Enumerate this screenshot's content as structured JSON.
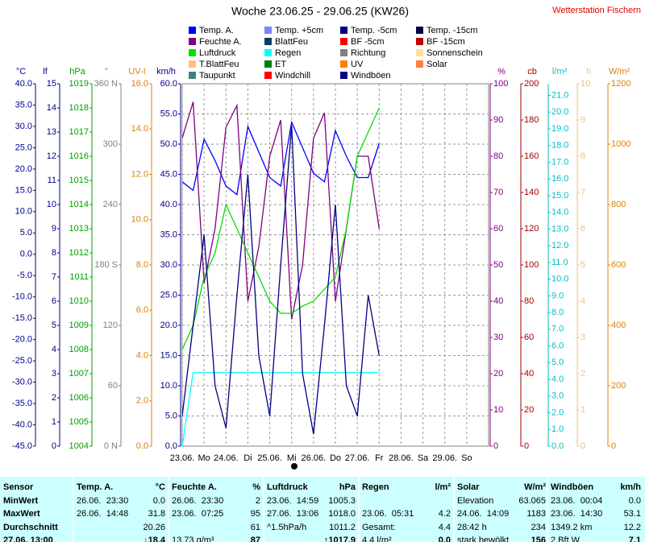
{
  "header": {
    "station": "Wetterstation Fischern"
  },
  "chart_data": {
    "type": "line",
    "title": "Woche 23.06.25 - 29.06.25 (KW26)",
    "xlim": [
      0,
      168
    ],
    "xticks": [
      {
        "value": 0,
        "label": "23.06."
      },
      {
        "value": 12,
        "label": "Mo"
      },
      {
        "value": 24,
        "label": "24.06."
      },
      {
        "value": 36,
        "label": "Di"
      },
      {
        "value": 48,
        "label": "25.06."
      },
      {
        "value": 60,
        "label": "Mi"
      },
      {
        "value": 72,
        "label": "26.06."
      },
      {
        "value": 84,
        "label": "Do"
      },
      {
        "value": 96,
        "label": "27.06."
      },
      {
        "value": 108,
        "label": "Fr"
      },
      {
        "value": 120,
        "label": "28.06."
      },
      {
        "value": 132,
        "label": "Sa"
      },
      {
        "value": 144,
        "label": "29.06."
      },
      {
        "value": 156,
        "label": "So"
      }
    ],
    "grid": true,
    "axes": [
      {
        "unit": "°C",
        "color": "#00008b",
        "side": "left",
        "lim": [
          -45,
          40
        ],
        "ticks": [
          {
            "value": -45,
            "label": "-45.0"
          },
          {
            "value": -40,
            "label": "-40.0"
          },
          {
            "value": -35,
            "label": "-35.0"
          },
          {
            "value": -30,
            "label": "-30.0"
          },
          {
            "value": -25,
            "label": "-25.0"
          },
          {
            "value": -20,
            "label": "-20.0"
          },
          {
            "value": -15,
            "label": "-15.0"
          },
          {
            "value": -10,
            "label": "-10.0"
          },
          {
            "value": -5,
            "label": "-5.0"
          },
          {
            "value": 0,
            "label": "0.0"
          },
          {
            "value": 5,
            "label": "5.0"
          },
          {
            "value": 10,
            "label": "10.0"
          },
          {
            "value": 15,
            "label": "15.0"
          },
          {
            "value": 20,
            "label": "20.0"
          },
          {
            "value": 25,
            "label": "25.0"
          },
          {
            "value": 30,
            "label": "30.0"
          },
          {
            "value": 35,
            "label": "35.0"
          },
          {
            "value": 40,
            "label": "40.0"
          }
        ]
      },
      {
        "unit": "lf",
        "color": "#00008b",
        "side": "left",
        "lim": [
          0,
          15
        ],
        "ticks": [
          0,
          1,
          2,
          3,
          4,
          5,
          6,
          7,
          8,
          9,
          10,
          11,
          12,
          13,
          14,
          15
        ]
      },
      {
        "unit": "hPa",
        "color": "#00a000",
        "side": "left",
        "lim": [
          1004,
          1019
        ],
        "ticks": [
          1004,
          1005,
          1006,
          1007,
          1008,
          1009,
          1010,
          1011,
          1012,
          1013,
          1014,
          1015,
          1016,
          1017,
          1018,
          1019
        ]
      },
      {
        "unit": "°",
        "color": "#808080",
        "side": "left",
        "lim": [
          0,
          360
        ],
        "ticks": [
          {
            "value": 0,
            "label": "0 N"
          },
          60,
          120,
          {
            "value": 180,
            "label": "180 S"
          },
          240,
          300,
          {
            "value": 360,
            "label": "360 N"
          }
        ]
      },
      {
        "unit": "UV-I",
        "color": "#e08000",
        "side": "left",
        "lim": [
          0,
          16
        ],
        "ticks": [
          {
            "value": 0,
            "label": "0.0"
          },
          {
            "value": 2,
            "label": "2.0"
          },
          {
            "value": 4,
            "label": "4.0"
          },
          {
            "value": 6,
            "label": "6.0"
          },
          {
            "value": 8,
            "label": "8.0"
          },
          {
            "value": 10,
            "label": "10.0"
          },
          {
            "value": 12,
            "label": "12.0"
          },
          {
            "value": 14,
            "label": "14.0"
          },
          {
            "value": 16,
            "label": "16.0"
          }
        ]
      },
      {
        "unit": "km/h",
        "color": "#00008b",
        "side": "left",
        "lim": [
          0,
          60
        ],
        "ticks": [
          {
            "value": 0,
            "label": "0.0"
          },
          {
            "value": 5,
            "label": "5.0"
          },
          {
            "value": 10,
            "label": "10.0"
          },
          {
            "value": 15,
            "label": "15.0"
          },
          {
            "value": 20,
            "label": "20.0"
          },
          {
            "value": 25,
            "label": "25.0"
          },
          {
            "value": 30,
            "label": "30.0"
          },
          {
            "value": 35,
            "label": "35.0"
          },
          {
            "value": 40,
            "label": "40.0"
          },
          {
            "value": 45,
            "label": "45.0"
          },
          {
            "value": 50,
            "label": "50.0"
          },
          {
            "value": 55,
            "label": "55.0"
          },
          {
            "value": 60,
            "label": "60.0"
          }
        ]
      },
      {
        "unit": "%",
        "color": "#800080",
        "side": "right",
        "lim": [
          0,
          100
        ],
        "ticks": [
          0,
          10,
          20,
          30,
          40,
          50,
          60,
          70,
          80,
          90,
          100
        ]
      },
      {
        "unit": "cb",
        "color": "#a00000",
        "side": "right",
        "lim": [
          0,
          200
        ],
        "ticks": [
          0,
          20,
          40,
          60,
          80,
          100,
          120,
          140,
          160,
          180,
          200
        ]
      },
      {
        "unit": "l/m²",
        "color": "#00c0c0",
        "side": "right",
        "lim": [
          0,
          21.7
        ],
        "ticks": [
          {
            "value": 0,
            "label": "0.0"
          },
          {
            "value": 1,
            "label": "1.0"
          },
          {
            "value": 2,
            "label": "2.0"
          },
          {
            "value": 3,
            "label": "3.0"
          },
          {
            "value": 4,
            "label": "4.0"
          },
          {
            "value": 5,
            "label": "5.0"
          },
          {
            "value": 6,
            "label": "6.0"
          },
          {
            "value": 7,
            "label": "7.0"
          },
          {
            "value": 8,
            "label": "8.0"
          },
          {
            "value": 9,
            "label": "9.0"
          },
          {
            "value": 10,
            "label": "10.0"
          },
          {
            "value": 11,
            "label": "11.0"
          },
          {
            "value": 12,
            "label": "12.0"
          },
          {
            "value": 13,
            "label": "13.0"
          },
          {
            "value": 14,
            "label": "14.0"
          },
          {
            "value": 15,
            "label": "15.0"
          },
          {
            "value": 16,
            "label": "16.0"
          },
          {
            "value": 17,
            "label": "17.0"
          },
          {
            "value": 18,
            "label": "18.0"
          },
          {
            "value": 19,
            "label": "19.0"
          },
          {
            "value": 20,
            "label": "20.0"
          },
          {
            "value": 21,
            "label": "21.0"
          }
        ]
      },
      {
        "unit": "h",
        "color": "#f0c080",
        "side": "right",
        "lim": [
          0,
          10
        ],
        "ticks": [
          0,
          1,
          2,
          3,
          4,
          5,
          6,
          7,
          8,
          9,
          10
        ]
      },
      {
        "unit": "W/m²",
        "color": "#e08000",
        "side": "right",
        "lim": [
          0,
          1200
        ],
        "ticks": [
          0,
          200,
          400,
          600,
          800,
          1000,
          1200
        ]
      }
    ],
    "x": [
      0,
      6,
      12,
      18,
      24,
      30,
      36,
      42,
      48,
      54,
      60,
      66,
      72,
      78,
      84,
      90,
      96,
      102,
      108
    ],
    "series": [
      {
        "name": "Temp. A.",
        "color": "#0000ff",
        "axis": "°C",
        "values": [
          17,
          15,
          27,
          22,
          16,
          14,
          30,
          24,
          18,
          16,
          31,
          25,
          19,
          17,
          29,
          23,
          18,
          18,
          26
        ]
      },
      {
        "name": "Temp. +5cm",
        "color": "#8080ff"
      },
      {
        "name": "Temp. -5cm",
        "color": "#000080"
      },
      {
        "name": "Temp. -15cm",
        "color": "#000040"
      },
      {
        "name": "Feuchte A.",
        "color": "#800080",
        "axis": "%",
        "values": [
          85,
          95,
          45,
          60,
          88,
          94,
          40,
          55,
          80,
          90,
          35,
          50,
          85,
          92,
          40,
          60,
          80,
          80,
          60
        ]
      },
      {
        "name": "BlattFeu",
        "color": "#004060"
      },
      {
        "name": "BF -5cm",
        "color": "#ff0000"
      },
      {
        "name": "BF -15cm",
        "color": "#c00000"
      },
      {
        "name": "Luftdruck",
        "color": "#00e000",
        "axis": "hPa",
        "values": [
          1008,
          1009,
          1011,
          1012,
          1014,
          1013,
          1012,
          1011,
          1010,
          1009.5,
          1009.5,
          1009.8,
          1010,
          1010.5,
          1011,
          1013,
          1016,
          1017,
          1018
        ]
      },
      {
        "name": "Regen",
        "color": "#00ffff",
        "axis": "l/m²",
        "values": [
          0,
          4.4,
          4.4,
          4.4,
          4.4,
          4.4,
          4.4,
          4.4,
          4.4,
          4.4,
          4.4,
          4.4,
          4.4,
          4.4,
          4.4,
          4.4,
          4.4,
          4.4,
          4.4
        ]
      },
      {
        "name": "Richtung",
        "color": "#808080"
      },
      {
        "name": "Sonnenschein",
        "color": "#ffe0a0"
      },
      {
        "name": "T.BlattFeu",
        "color": "#ffc080"
      },
      {
        "name": "ET",
        "color": "#008000"
      },
      {
        "name": "UV",
        "color": "#ff8000"
      },
      {
        "name": "Solar",
        "color": "#ff8040"
      },
      {
        "name": "Taupunkt",
        "color": "#408080"
      },
      {
        "name": "Windchill",
        "color": "#ff0000"
      },
      {
        "name": "Windböen",
        "color": "#000080",
        "axis": "km/h",
        "values": [
          5,
          20,
          35,
          10,
          3,
          25,
          45,
          15,
          5,
          30,
          53.1,
          12,
          2,
          20,
          40,
          10,
          5,
          25,
          15
        ]
      }
    ]
  },
  "table": {
    "header": [
      [
        "Sensor"
      ],
      [
        "Temp. A.",
        "°C"
      ],
      [
        "Feuchte A.",
        "%"
      ],
      [
        "Luftdruck",
        "hPa"
      ],
      [
        "Regen",
        "l/m²"
      ],
      [
        "Solar",
        "W/m²"
      ],
      [
        "Windböen",
        "km/h"
      ]
    ],
    "rows": [
      [
        [
          "MinWert"
        ],
        [
          "26.06.  23:30",
          "0.0"
        ],
        [
          "26.06.  23:30",
          "2"
        ],
        [
          "23.06.  14:59",
          "1005.3"
        ],
        [
          "",
          ""
        ],
        [
          "Elevation",
          "63.065"
        ],
        [
          "23.06.  00:04",
          "0.0"
        ]
      ],
      [
        [
          "MaxWert"
        ],
        [
          "26.06.  14:48",
          "31.8"
        ],
        [
          "23.06.  07:25",
          "95"
        ],
        [
          "27.06.  13:06",
          "1018.0"
        ],
        [
          "23.06.  05:31",
          "4.2"
        ],
        [
          "24.06.  14:09",
          "1183"
        ],
        [
          "23.06.  14:30",
          "53.1"
        ]
      ],
      [
        [
          "Durchschnitt"
        ],
        [
          "",
          "20.26"
        ],
        [
          "",
          "61"
        ],
        [
          "^1.5hPa/h",
          "1011.2"
        ],
        [
          "Gesamt:",
          "4.4"
        ],
        [
          "28:42 h",
          "234"
        ],
        [
          "1349.2 km",
          "12.2"
        ]
      ],
      [
        [
          "27.06. 13:00"
        ],
        [
          "",
          "↓18.4"
        ],
        [
          "13.73 g/m³",
          "87"
        ],
        [
          "",
          "↑1017.9"
        ],
        [
          "4.4 l/m²",
          "0.0"
        ],
        [
          "stark bewölkt",
          "156"
        ],
        [
          "2 Bft W",
          "7.1"
        ]
      ]
    ]
  }
}
